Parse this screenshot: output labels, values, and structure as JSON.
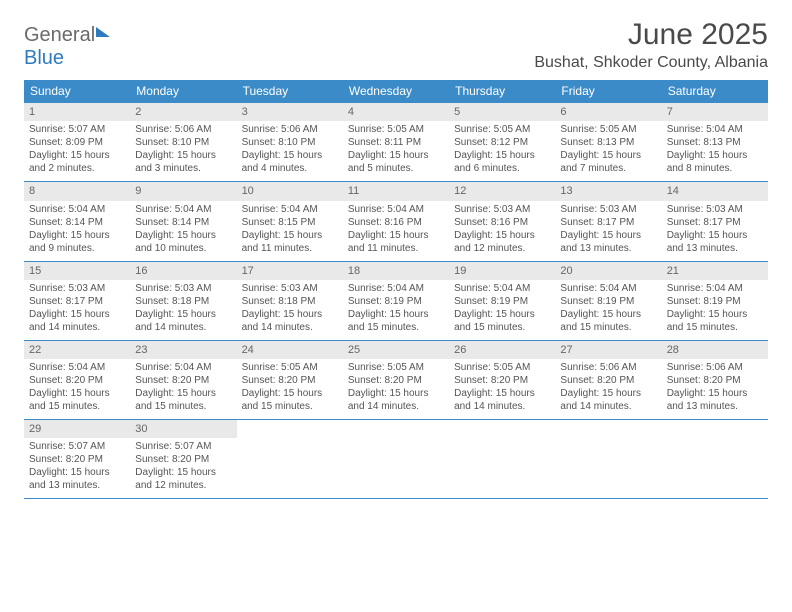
{
  "logo": {
    "part1": "General",
    "part2": "Blue"
  },
  "title": "June 2025",
  "location": "Bushat, Shkoder County, Albania",
  "colors": {
    "header_bg": "#3b8bc8",
    "header_text": "#ffffff",
    "border": "#3b8bc8",
    "daynum_bg": "#e9e9e9",
    "body_text": "#555555",
    "logo_gray": "#6b6b6b",
    "logo_blue": "#2f7bbf"
  },
  "fonts": {
    "title_size": 30,
    "location_size": 16,
    "header_size": 12,
    "cell_size": 10
  },
  "weekdays": [
    "Sunday",
    "Monday",
    "Tuesday",
    "Wednesday",
    "Thursday",
    "Friday",
    "Saturday"
  ],
  "days": [
    {
      "n": 1,
      "sunrise": "5:07 AM",
      "sunset": "8:09 PM",
      "daylight": "15 hours and 2 minutes."
    },
    {
      "n": 2,
      "sunrise": "5:06 AM",
      "sunset": "8:10 PM",
      "daylight": "15 hours and 3 minutes."
    },
    {
      "n": 3,
      "sunrise": "5:06 AM",
      "sunset": "8:10 PM",
      "daylight": "15 hours and 4 minutes."
    },
    {
      "n": 4,
      "sunrise": "5:05 AM",
      "sunset": "8:11 PM",
      "daylight": "15 hours and 5 minutes."
    },
    {
      "n": 5,
      "sunrise": "5:05 AM",
      "sunset": "8:12 PM",
      "daylight": "15 hours and 6 minutes."
    },
    {
      "n": 6,
      "sunrise": "5:05 AM",
      "sunset": "8:13 PM",
      "daylight": "15 hours and 7 minutes."
    },
    {
      "n": 7,
      "sunrise": "5:04 AM",
      "sunset": "8:13 PM",
      "daylight": "15 hours and 8 minutes."
    },
    {
      "n": 8,
      "sunrise": "5:04 AM",
      "sunset": "8:14 PM",
      "daylight": "15 hours and 9 minutes."
    },
    {
      "n": 9,
      "sunrise": "5:04 AM",
      "sunset": "8:14 PM",
      "daylight": "15 hours and 10 minutes."
    },
    {
      "n": 10,
      "sunrise": "5:04 AM",
      "sunset": "8:15 PM",
      "daylight": "15 hours and 11 minutes."
    },
    {
      "n": 11,
      "sunrise": "5:04 AM",
      "sunset": "8:16 PM",
      "daylight": "15 hours and 11 minutes."
    },
    {
      "n": 12,
      "sunrise": "5:03 AM",
      "sunset": "8:16 PM",
      "daylight": "15 hours and 12 minutes."
    },
    {
      "n": 13,
      "sunrise": "5:03 AM",
      "sunset": "8:17 PM",
      "daylight": "15 hours and 13 minutes."
    },
    {
      "n": 14,
      "sunrise": "5:03 AM",
      "sunset": "8:17 PM",
      "daylight": "15 hours and 13 minutes."
    },
    {
      "n": 15,
      "sunrise": "5:03 AM",
      "sunset": "8:17 PM",
      "daylight": "15 hours and 14 minutes."
    },
    {
      "n": 16,
      "sunrise": "5:03 AM",
      "sunset": "8:18 PM",
      "daylight": "15 hours and 14 minutes."
    },
    {
      "n": 17,
      "sunrise": "5:03 AM",
      "sunset": "8:18 PM",
      "daylight": "15 hours and 14 minutes."
    },
    {
      "n": 18,
      "sunrise": "5:04 AM",
      "sunset": "8:19 PM",
      "daylight": "15 hours and 15 minutes."
    },
    {
      "n": 19,
      "sunrise": "5:04 AM",
      "sunset": "8:19 PM",
      "daylight": "15 hours and 15 minutes."
    },
    {
      "n": 20,
      "sunrise": "5:04 AM",
      "sunset": "8:19 PM",
      "daylight": "15 hours and 15 minutes."
    },
    {
      "n": 21,
      "sunrise": "5:04 AM",
      "sunset": "8:19 PM",
      "daylight": "15 hours and 15 minutes."
    },
    {
      "n": 22,
      "sunrise": "5:04 AM",
      "sunset": "8:20 PM",
      "daylight": "15 hours and 15 minutes."
    },
    {
      "n": 23,
      "sunrise": "5:04 AM",
      "sunset": "8:20 PM",
      "daylight": "15 hours and 15 minutes."
    },
    {
      "n": 24,
      "sunrise": "5:05 AM",
      "sunset": "8:20 PM",
      "daylight": "15 hours and 15 minutes."
    },
    {
      "n": 25,
      "sunrise": "5:05 AM",
      "sunset": "8:20 PM",
      "daylight": "15 hours and 14 minutes."
    },
    {
      "n": 26,
      "sunrise": "5:05 AM",
      "sunset": "8:20 PM",
      "daylight": "15 hours and 14 minutes."
    },
    {
      "n": 27,
      "sunrise": "5:06 AM",
      "sunset": "8:20 PM",
      "daylight": "15 hours and 14 minutes."
    },
    {
      "n": 28,
      "sunrise": "5:06 AM",
      "sunset": "8:20 PM",
      "daylight": "15 hours and 13 minutes."
    },
    {
      "n": 29,
      "sunrise": "5:07 AM",
      "sunset": "8:20 PM",
      "daylight": "15 hours and 13 minutes."
    },
    {
      "n": 30,
      "sunrise": "5:07 AM",
      "sunset": "8:20 PM",
      "daylight": "15 hours and 12 minutes."
    }
  ],
  "labels": {
    "sunrise": "Sunrise: ",
    "sunset": "Sunset: ",
    "daylight": "Daylight: "
  },
  "grid": {
    "start_weekday": 0,
    "cols": 7
  }
}
